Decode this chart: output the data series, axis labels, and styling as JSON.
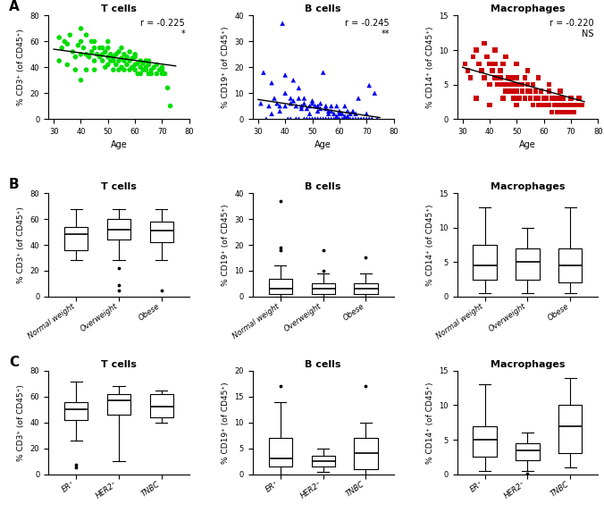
{
  "panel_A": {
    "T_cells": {
      "title": "T cells",
      "color": "#00DD00",
      "marker": "o",
      "r_text": "r = -0.225",
      "sig": "*",
      "ylabel": "% CD3⁺ (of CD45⁺)",
      "xlabel": "Age",
      "xlim": [
        28,
        80
      ],
      "ylim": [
        0,
        80
      ],
      "xticks": [
        30,
        40,
        50,
        60,
        70,
        80
      ],
      "yticks": [
        0,
        20,
        40,
        60,
        80
      ],
      "trend_x": [
        30,
        75
      ],
      "trend_y": [
        54,
        41
      ]
    },
    "B_cells": {
      "title": "B cells",
      "color": "#0000EE",
      "marker": "^",
      "r_text": "r = -0.245",
      "sig": "**",
      "ylabel": "% CD19⁺ (of CD45⁺)",
      "xlabel": "Age",
      "xlim": [
        28,
        80
      ],
      "ylim": [
        0,
        40
      ],
      "xticks": [
        30,
        40,
        50,
        60,
        70,
        80
      ],
      "yticks": [
        0,
        10,
        20,
        30,
        40
      ],
      "trend_x": [
        30,
        75
      ],
      "trend_y": [
        7.5,
        0.5
      ]
    },
    "Macrophages": {
      "title": "Macrophages",
      "color": "#CC0000",
      "marker": "s",
      "r_text": "r = -0.220",
      "sig": "NS",
      "ylabel": "% CD14⁺ (of CD45⁺)",
      "xlabel": "Age",
      "xlim": [
        28,
        80
      ],
      "ylim": [
        0,
        15
      ],
      "xticks": [
        30,
        40,
        50,
        60,
        70,
        80
      ],
      "yticks": [
        0,
        5,
        10,
        15
      ],
      "trend_x": [
        30,
        75
      ],
      "trend_y": [
        7.5,
        2.5
      ]
    }
  },
  "panel_B": {
    "T_cells": {
      "title": "T cells",
      "categories": [
        "Normal weight",
        "Overweight",
        "Obese"
      ],
      "ylabel": "% CD3⁺ (of CD45⁺)",
      "ylim": [
        0,
        80
      ],
      "yticks": [
        0,
        20,
        40,
        60,
        80
      ],
      "boxes": [
        {
          "q1": 36,
          "median": 48,
          "q3": 54,
          "whislo": 28,
          "whishi": 68,
          "fliers": []
        },
        {
          "q1": 44,
          "median": 52,
          "q3": 60,
          "whislo": 28,
          "whishi": 68,
          "fliers": [
            22,
            9,
            5
          ]
        },
        {
          "q1": 42,
          "median": 51,
          "q3": 58,
          "whislo": 28,
          "whishi": 68,
          "fliers": [
            5
          ]
        }
      ]
    },
    "B_cells": {
      "title": "B cells",
      "categories": [
        "Normal weight",
        "Overweight",
        "Obese"
      ],
      "ylabel": "% CD19⁺ (of CD45⁺)",
      "ylim": [
        0,
        40
      ],
      "yticks": [
        0,
        10,
        20,
        30,
        40
      ],
      "boxes": [
        {
          "q1": 1,
          "median": 3,
          "q3": 7,
          "whislo": 0,
          "whishi": 12,
          "fliers": [
            19,
            18,
            37
          ]
        },
        {
          "q1": 1,
          "median": 3,
          "q3": 5,
          "whislo": 0,
          "whishi": 9,
          "fliers": [
            18,
            10
          ]
        },
        {
          "q1": 1,
          "median": 3,
          "q3": 5,
          "whislo": 0,
          "whishi": 9,
          "fliers": [
            15
          ]
        }
      ]
    },
    "Macrophages": {
      "title": "Macrophages",
      "categories": [
        "Normal weight",
        "Overweight",
        "Obese"
      ],
      "ylabel": "% CD14⁺ (of CD45⁺)",
      "ylim": [
        0,
        15
      ],
      "yticks": [
        0,
        5,
        10,
        15
      ],
      "boxes": [
        {
          "q1": 2.5,
          "median": 4.5,
          "q3": 7.5,
          "whislo": 0.5,
          "whishi": 13,
          "fliers": []
        },
        {
          "q1": 2.5,
          "median": 5,
          "q3": 7,
          "whislo": 0.5,
          "whishi": 10,
          "fliers": []
        },
        {
          "q1": 2,
          "median": 4.5,
          "q3": 7,
          "whislo": 0.5,
          "whishi": 13,
          "fliers": []
        }
      ]
    }
  },
  "panel_C": {
    "T_cells": {
      "title": "T cells",
      "categories": [
        "ER⁺",
        "HER2⁺",
        "TNBC"
      ],
      "ylabel": "% CD3⁺ (of CD45⁺)",
      "ylim": [
        0,
        80
      ],
      "yticks": [
        0,
        20,
        40,
        60,
        80
      ],
      "boxes": [
        {
          "q1": 42,
          "median": 50,
          "q3": 56,
          "whislo": 26,
          "whishi": 72,
          "fliers": [
            7,
            5
          ]
        },
        {
          "q1": 46,
          "median": 57,
          "q3": 62,
          "whislo": 10,
          "whishi": 68,
          "fliers": []
        },
        {
          "q1": 44,
          "median": 52,
          "q3": 62,
          "whislo": 40,
          "whishi": 65,
          "fliers": []
        }
      ]
    },
    "B_cells": {
      "title": "B cells",
      "categories": [
        "ER⁺",
        "HER2⁺",
        "TNBC"
      ],
      "ylabel": "% CD19⁺ (of CD45⁺)",
      "ylim": [
        0,
        20
      ],
      "yticks": [
        0,
        5,
        10,
        15,
        20
      ],
      "boxes": [
        {
          "q1": 1.5,
          "median": 3,
          "q3": 7,
          "whislo": 0,
          "whishi": 14,
          "fliers": [
            17
          ]
        },
        {
          "q1": 1.5,
          "median": 2.5,
          "q3": 3.5,
          "whislo": 0.5,
          "whishi": 5,
          "fliers": []
        },
        {
          "q1": 1,
          "median": 4,
          "q3": 7,
          "whislo": 0,
          "whishi": 10,
          "fliers": [
            17
          ]
        }
      ]
    },
    "Macrophages": {
      "title": "Macrophages",
      "categories": [
        "ER⁺",
        "HER2⁺",
        "TNBC"
      ],
      "ylabel": "% CD14⁺ (of CD45⁺)",
      "ylim": [
        0,
        15
      ],
      "yticks": [
        0,
        5,
        10,
        15
      ],
      "boxes": [
        {
          "q1": 2.5,
          "median": 5,
          "q3": 7,
          "whislo": 0.5,
          "whishi": 13,
          "fliers": []
        },
        {
          "q1": 2,
          "median": 3.5,
          "q3": 4.5,
          "whislo": 0.5,
          "whishi": 6,
          "fliers": [
            0.1
          ]
        },
        {
          "q1": 3,
          "median": 7,
          "q3": 10,
          "whislo": 1,
          "whishi": 14,
          "fliers": []
        }
      ]
    }
  },
  "scatter_T": [
    [
      32,
      63
    ],
    [
      33,
      55
    ],
    [
      34,
      60
    ],
    [
      35,
      58
    ],
    [
      36,
      65
    ],
    [
      37,
      52
    ],
    [
      38,
      48
    ],
    [
      39,
      57
    ],
    [
      40,
      70
    ],
    [
      40,
      60
    ],
    [
      41,
      55
    ],
    [
      42,
      50
    ],
    [
      42,
      65
    ],
    [
      43,
      48
    ],
    [
      44,
      52
    ],
    [
      44,
      60
    ],
    [
      45,
      55
    ],
    [
      45,
      45
    ],
    [
      46,
      50
    ],
    [
      47,
      48
    ],
    [
      47,
      55
    ],
    [
      48,
      45
    ],
    [
      48,
      50
    ],
    [
      49,
      40
    ],
    [
      49,
      52
    ],
    [
      50,
      48
    ],
    [
      50,
      55
    ],
    [
      51,
      45
    ],
    [
      51,
      50
    ],
    [
      52,
      45
    ],
    [
      52,
      48
    ],
    [
      53,
      42
    ],
    [
      53,
      50
    ],
    [
      54,
      45
    ],
    [
      54,
      52
    ],
    [
      55,
      40
    ],
    [
      55,
      47
    ],
    [
      56,
      45
    ],
    [
      56,
      50
    ],
    [
      57,
      42
    ],
    [
      57,
      48
    ],
    [
      58,
      38
    ],
    [
      58,
      45
    ],
    [
      59,
      40
    ],
    [
      59,
      47
    ],
    [
      60,
      42
    ],
    [
      60,
      48
    ],
    [
      61,
      35
    ],
    [
      61,
      43
    ],
    [
      62,
      40
    ],
    [
      62,
      45
    ],
    [
      63,
      38
    ],
    [
      63,
      43
    ],
    [
      64,
      40
    ],
    [
      64,
      45
    ],
    [
      65,
      35
    ],
    [
      65,
      42
    ],
    [
      66,
      38
    ],
    [
      67,
      40
    ],
    [
      68,
      35
    ],
    [
      68,
      42
    ],
    [
      69,
      38
    ],
    [
      70,
      35
    ],
    [
      70,
      40
    ],
    [
      71,
      35
    ],
    [
      72,
      24
    ],
    [
      73,
      10
    ],
    [
      32,
      45
    ],
    [
      35,
      42
    ],
    [
      38,
      38
    ],
    [
      40,
      30
    ],
    [
      42,
      38
    ],
    [
      45,
      38
    ],
    [
      48,
      55
    ],
    [
      50,
      42
    ],
    [
      52,
      38
    ],
    [
      54,
      38
    ],
    [
      56,
      38
    ],
    [
      58,
      52
    ],
    [
      60,
      38
    ],
    [
      62,
      35
    ],
    [
      64,
      38
    ],
    [
      66,
      35
    ],
    [
      40,
      50
    ],
    [
      45,
      60
    ],
    [
      50,
      60
    ],
    [
      55,
      55
    ],
    [
      60,
      50
    ],
    [
      65,
      45
    ],
    [
      70,
      38
    ]
  ],
  "scatter_B": [
    [
      31,
      6
    ],
    [
      32,
      18
    ],
    [
      33,
      0
    ],
    [
      34,
      5
    ],
    [
      35,
      14
    ],
    [
      36,
      8
    ],
    [
      37,
      6
    ],
    [
      38,
      5
    ],
    [
      39,
      37
    ],
    [
      40,
      5
    ],
    [
      40,
      10
    ],
    [
      41,
      0
    ],
    [
      42,
      6
    ],
    [
      42,
      0
    ],
    [
      43,
      7
    ],
    [
      44,
      0
    ],
    [
      44,
      5
    ],
    [
      45,
      8
    ],
    [
      45,
      0
    ],
    [
      46,
      5
    ],
    [
      47,
      0
    ],
    [
      47,
      6
    ],
    [
      48,
      4
    ],
    [
      48,
      0
    ],
    [
      49,
      0
    ],
    [
      49,
      5
    ],
    [
      50,
      6
    ],
    [
      50,
      0
    ],
    [
      51,
      0
    ],
    [
      51,
      5
    ],
    [
      52,
      5
    ],
    [
      52,
      0
    ],
    [
      53,
      0
    ],
    [
      53,
      4
    ],
    [
      54,
      18
    ],
    [
      54,
      0
    ],
    [
      55,
      5
    ],
    [
      55,
      0
    ],
    [
      56,
      0
    ],
    [
      56,
      3
    ],
    [
      57,
      0
    ],
    [
      57,
      5
    ],
    [
      58,
      0
    ],
    [
      58,
      2
    ],
    [
      59,
      0
    ],
    [
      59,
      5
    ],
    [
      60,
      0
    ],
    [
      60,
      3
    ],
    [
      61,
      0
    ],
    [
      61,
      2
    ],
    [
      62,
      0
    ],
    [
      62,
      5
    ],
    [
      63,
      0
    ],
    [
      63,
      3
    ],
    [
      64,
      0
    ],
    [
      64,
      2
    ],
    [
      65,
      0
    ],
    [
      65,
      3
    ],
    [
      66,
      0
    ],
    [
      66,
      2
    ],
    [
      67,
      0
    ],
    [
      68,
      0
    ],
    [
      69,
      0
    ],
    [
      70,
      2
    ],
    [
      70,
      0
    ],
    [
      71,
      0
    ],
    [
      71,
      13
    ],
    [
      72,
      0
    ],
    [
      73,
      10
    ],
    [
      74,
      0
    ],
    [
      40,
      17
    ],
    [
      43,
      15
    ],
    [
      45,
      12
    ],
    [
      47,
      8
    ],
    [
      50,
      7
    ],
    [
      53,
      6
    ],
    [
      55,
      4
    ],
    [
      57,
      3
    ],
    [
      60,
      2
    ],
    [
      62,
      1
    ],
    [
      35,
      2
    ],
    [
      38,
      3
    ],
    [
      42,
      8
    ],
    [
      46,
      4
    ],
    [
      49,
      2
    ],
    [
      52,
      3
    ],
    [
      56,
      2
    ],
    [
      59,
      1
    ],
    [
      63,
      1
    ],
    [
      67,
      8
    ]
  ],
  "scatter_M": [
    [
      31,
      8
    ],
    [
      32,
      7
    ],
    [
      33,
      6
    ],
    [
      34,
      9
    ],
    [
      35,
      10
    ],
    [
      36,
      8
    ],
    [
      37,
      7
    ],
    [
      38,
      6
    ],
    [
      39,
      9
    ],
    [
      40,
      8
    ],
    [
      40,
      5
    ],
    [
      41,
      7
    ],
    [
      42,
      6
    ],
    [
      42,
      8
    ],
    [
      43,
      5
    ],
    [
      44,
      7
    ],
    [
      44,
      6
    ],
    [
      45,
      5
    ],
    [
      45,
      8
    ],
    [
      46,
      4
    ],
    [
      47,
      6
    ],
    [
      47,
      5
    ],
    [
      48,
      4
    ],
    [
      48,
      6
    ],
    [
      49,
      3
    ],
    [
      49,
      5
    ],
    [
      50,
      4
    ],
    [
      50,
      6
    ],
    [
      51,
      3
    ],
    [
      51,
      5
    ],
    [
      52,
      4
    ],
    [
      52,
      5
    ],
    [
      53,
      3
    ],
    [
      53,
      6
    ],
    [
      54,
      4
    ],
    [
      54,
      5
    ],
    [
      55,
      3
    ],
    [
      55,
      4
    ],
    [
      56,
      2
    ],
    [
      56,
      5
    ],
    [
      57,
      3
    ],
    [
      57,
      4
    ],
    [
      58,
      2
    ],
    [
      58,
      3
    ],
    [
      59,
      2
    ],
    [
      59,
      4
    ],
    [
      60,
      2
    ],
    [
      60,
      3
    ],
    [
      61,
      2
    ],
    [
      61,
      3
    ],
    [
      62,
      2
    ],
    [
      62,
      4
    ],
    [
      63,
      1
    ],
    [
      63,
      3
    ],
    [
      64,
      2
    ],
    [
      64,
      3
    ],
    [
      65,
      1
    ],
    [
      65,
      3
    ],
    [
      66,
      1
    ],
    [
      66,
      2
    ],
    [
      67,
      2
    ],
    [
      67,
      3
    ],
    [
      68,
      1
    ],
    [
      68,
      2
    ],
    [
      69,
      1
    ],
    [
      70,
      2
    ],
    [
      71,
      1
    ],
    [
      72,
      2
    ],
    [
      73,
      3
    ],
    [
      74,
      2
    ],
    [
      38,
      11
    ],
    [
      42,
      10
    ],
    [
      46,
      9
    ],
    [
      50,
      8
    ],
    [
      54,
      7
    ],
    [
      58,
      6
    ],
    [
      62,
      5
    ],
    [
      66,
      4
    ],
    [
      70,
      3
    ],
    [
      74,
      2
    ],
    [
      35,
      3
    ],
    [
      40,
      2
    ],
    [
      45,
      3
    ],
    [
      50,
      2
    ],
    [
      55,
      3
    ],
    [
      60,
      2
    ],
    [
      65,
      2
    ],
    [
      70,
      1
    ]
  ]
}
